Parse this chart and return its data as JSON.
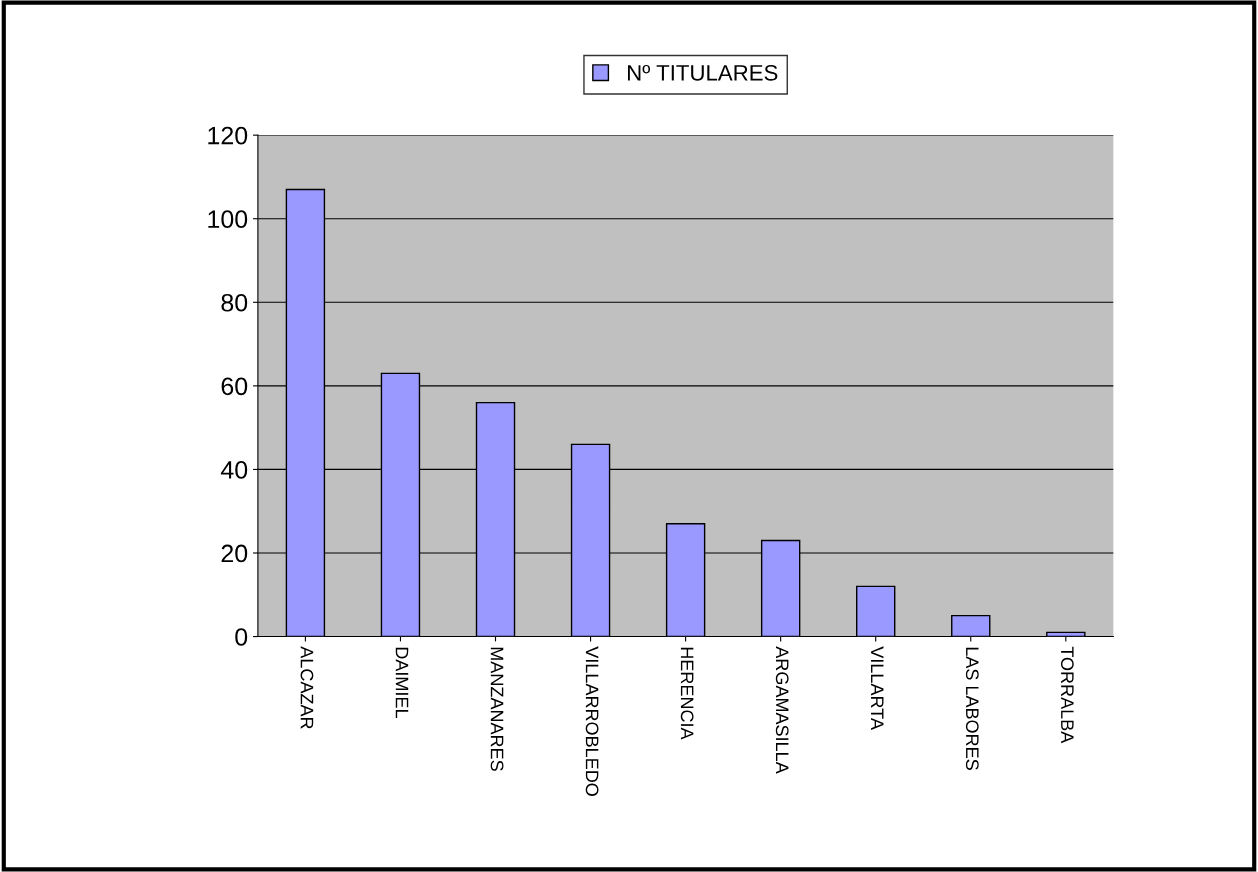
{
  "chart_data": {
    "type": "bar",
    "categories": [
      "ALCAZAR",
      "DAIMIEL",
      "MANZANARES",
      "VILLARROBLEDO",
      "HERENCIA",
      "ARGAMASILLA",
      "VILLARTA",
      "LAS LABORES",
      "TORRALBA"
    ],
    "series": [
      {
        "name": "Nº TITULARES",
        "color": "#9999ff",
        "values": [
          107,
          63,
          56,
          46,
          27,
          23,
          12,
          5,
          1
        ]
      }
    ],
    "ylim": [
      0,
      120
    ],
    "yticks": [
      0,
      20,
      40,
      60,
      80,
      100,
      120
    ],
    "grid": "y",
    "legend": "top"
  }
}
